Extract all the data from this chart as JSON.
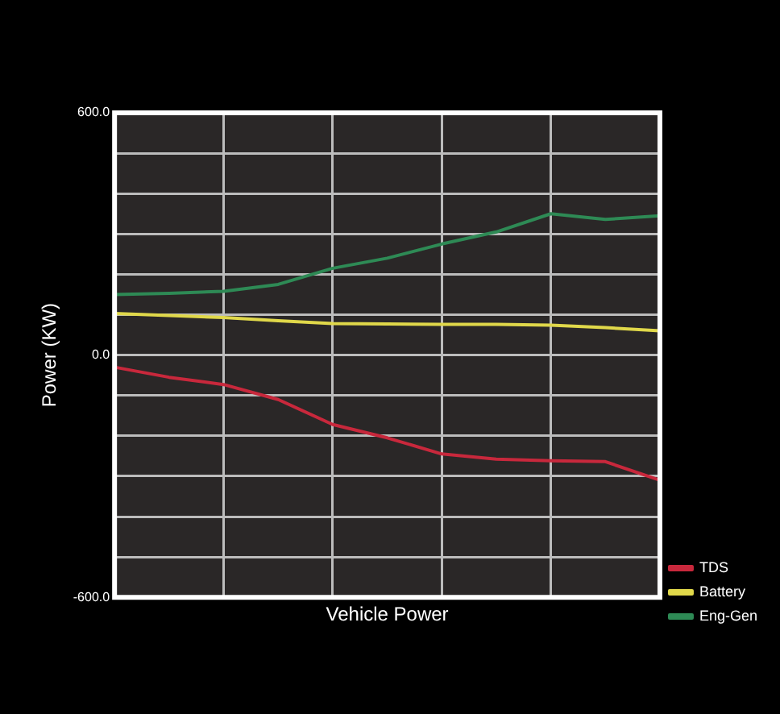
{
  "chart_data": {
    "type": "line",
    "xlabel": "Vehicle Power",
    "ylabel": "Power (KW)",
    "categories": [
      null,
      null,
      null,
      null,
      null,
      null,
      null,
      null,
      null,
      null,
      null
    ],
    "series": [
      {
        "name": "TDS",
        "color": "#c8283c",
        "values": [
          -30,
          -55,
          -73,
          -110,
          -172,
          -205,
          -245,
          -258,
          -262,
          -264,
          -310
        ]
      },
      {
        "name": "Battery",
        "color": "#e0d84a",
        "values": [
          103,
          98,
          93,
          85,
          78,
          77,
          76,
          76,
          74,
          68,
          60
        ]
      },
      {
        "name": "Eng-Gen",
        "color": "#2e8a55",
        "values": [
          150,
          153,
          158,
          175,
          215,
          240,
          275,
          305,
          350,
          336,
          345
        ]
      }
    ],
    "ylim": [
      -600,
      600
    ],
    "yticks": [
      {
        "value": -600,
        "label": "-600.0"
      },
      {
        "value": -500,
        "label": null
      },
      {
        "value": -400,
        "label": null
      },
      {
        "value": -300,
        "label": null
      },
      {
        "value": -200,
        "label": null
      },
      {
        "value": -100,
        "label": null
      },
      {
        "value": 0,
        "label": "0.0"
      },
      {
        "value": 100,
        "label": null
      },
      {
        "value": 200,
        "label": null
      },
      {
        "value": 300,
        "label": null
      },
      {
        "value": 400,
        "label": null
      },
      {
        "value": 500,
        "label": null
      },
      {
        "value": 600,
        "label": "600.0"
      }
    ],
    "grid": true,
    "legend": "bottom right",
    "tick_labels": "y",
    "marker": "none",
    "line_style": "solid"
  }
}
